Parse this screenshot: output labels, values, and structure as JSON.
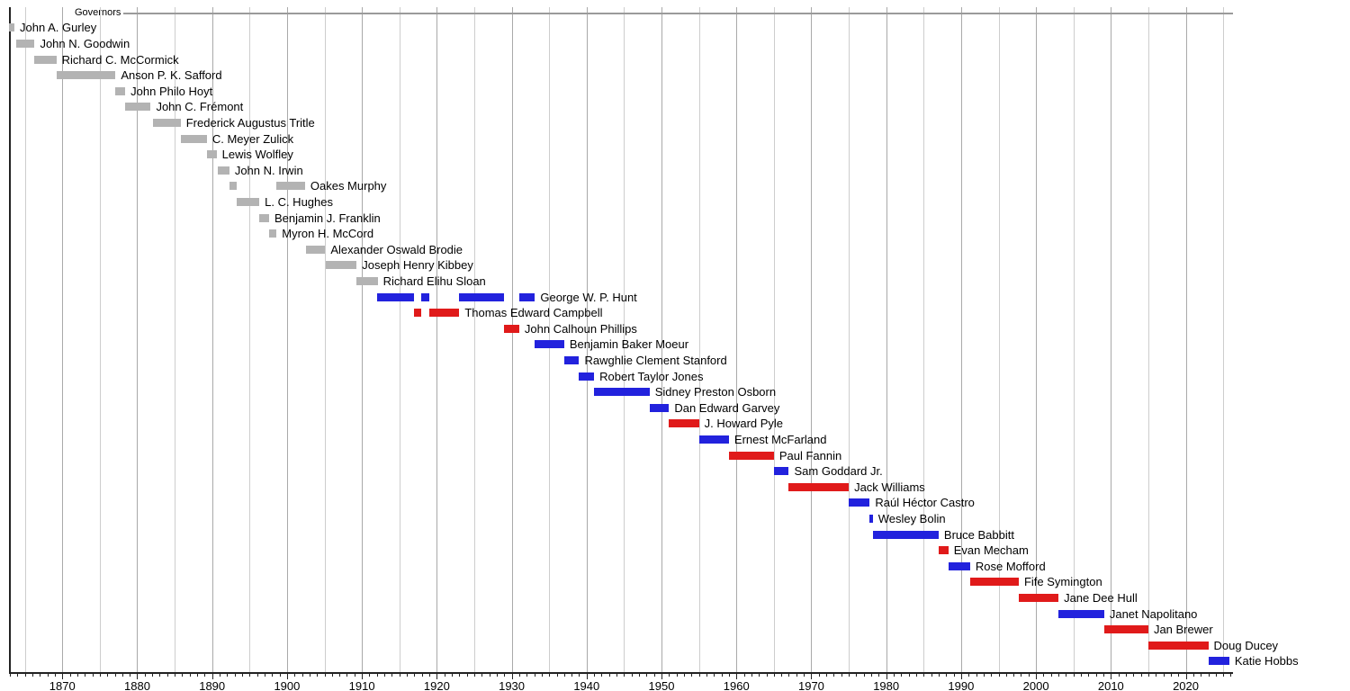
{
  "chart_data": {
    "type": "timeline",
    "title": "Governors",
    "legend_label": "Governors",
    "x_axis": {
      "min_year": 1863,
      "max_year": 2026,
      "major_tick_interval": 10,
      "minor_tick_interval": 1,
      "grid_interval": 5,
      "tick_labels": [
        "1870",
        "1880",
        "1890",
        "1900",
        "1910",
        "1920",
        "1930",
        "1940",
        "1950",
        "1960",
        "1970",
        "1980",
        "1990",
        "2000",
        "2010",
        "2020"
      ]
    },
    "colors": {
      "territorial": "#b3b3b3",
      "democratic": "#2222dd",
      "republican": "#e01a1a",
      "grid_major": "#a9a9a9",
      "grid_minor": "#cdcdcd",
      "axis": "#222222",
      "legend_line": "#9a9a9a",
      "text": "#000000"
    },
    "governors": [
      {
        "name": "John A. Gurley",
        "party": "territorial",
        "terms": [
          [
            1862.9,
            1863.6
          ]
        ]
      },
      {
        "name": "John N. Goodwin",
        "party": "territorial",
        "terms": [
          [
            1863.9,
            1866.3
          ]
        ]
      },
      {
        "name": "Richard C. McCormick",
        "party": "territorial",
        "terms": [
          [
            1866.3,
            1869.2
          ]
        ]
      },
      {
        "name": "Anson P. K. Safford",
        "party": "territorial",
        "terms": [
          [
            1869.3,
            1877.1
          ]
        ]
      },
      {
        "name": "John Philo Hoyt",
        "party": "territorial",
        "terms": [
          [
            1877.1,
            1878.4
          ]
        ]
      },
      {
        "name": "John C. Frémont",
        "party": "territorial",
        "terms": [
          [
            1878.4,
            1881.8
          ]
        ]
      },
      {
        "name": "Frederick Augustus Tritle",
        "party": "territorial",
        "terms": [
          [
            1882.1,
            1885.8
          ]
        ]
      },
      {
        "name": "C. Meyer Zulick",
        "party": "territorial",
        "terms": [
          [
            1885.8,
            1889.3
          ]
        ]
      },
      {
        "name": "Lewis Wolfley",
        "party": "territorial",
        "terms": [
          [
            1889.3,
            1890.6
          ]
        ]
      },
      {
        "name": "John N. Irwin",
        "party": "territorial",
        "terms": [
          [
            1890.8,
            1892.3
          ]
        ]
      },
      {
        "name": "Oakes Murphy",
        "party": "territorial",
        "terms": [
          [
            1892.3,
            1893.3
          ],
          [
            1898.6,
            1902.4
          ]
        ]
      },
      {
        "name": "L. C. Hughes",
        "party": "territorial",
        "terms": [
          [
            1893.3,
            1896.3
          ]
        ]
      },
      {
        "name": "Benjamin J. Franklin",
        "party": "territorial",
        "terms": [
          [
            1896.3,
            1897.6
          ]
        ]
      },
      {
        "name": "Myron H. McCord",
        "party": "territorial",
        "terms": [
          [
            1897.6,
            1898.6
          ]
        ]
      },
      {
        "name": "Alexander Oswald Brodie",
        "party": "territorial",
        "terms": [
          [
            1902.5,
            1905.1
          ]
        ]
      },
      {
        "name": "Joseph Henry Kibbey",
        "party": "territorial",
        "terms": [
          [
            1905.2,
            1909.3
          ]
        ]
      },
      {
        "name": "Richard Elihu Sloan",
        "party": "territorial",
        "terms": [
          [
            1909.3,
            1912.1
          ]
        ]
      },
      {
        "name": "George W. P. Hunt",
        "party": "democratic",
        "terms": [
          [
            1912.0,
            1917.0
          ],
          [
            1917.9,
            1919.0
          ],
          [
            1923.0,
            1929.0
          ],
          [
            1931.0,
            1933.1
          ]
        ]
      },
      {
        "name": "Thomas Edward Campbell",
        "party": "republican",
        "terms": [
          [
            1917.0,
            1917.9
          ],
          [
            1919.0,
            1923.0
          ]
        ]
      },
      {
        "name": "John Calhoun Phillips",
        "party": "republican",
        "terms": [
          [
            1929.0,
            1931.0
          ]
        ]
      },
      {
        "name": "Benjamin Baker Moeur",
        "party": "democratic",
        "terms": [
          [
            1933.0,
            1937.0
          ]
        ]
      },
      {
        "name": "Rawghlie Clement Stanford",
        "party": "democratic",
        "terms": [
          [
            1937.0,
            1939.0
          ]
        ]
      },
      {
        "name": "Robert Taylor Jones",
        "party": "democratic",
        "terms": [
          [
            1939.0,
            1941.0
          ]
        ]
      },
      {
        "name": "Sidney Preston Osborn",
        "party": "democratic",
        "terms": [
          [
            1941.0,
            1948.4
          ]
        ]
      },
      {
        "name": "Dan Edward Garvey",
        "party": "democratic",
        "terms": [
          [
            1948.4,
            1951.0
          ]
        ]
      },
      {
        "name": "J. Howard Pyle",
        "party": "republican",
        "terms": [
          [
            1951.0,
            1955.0
          ]
        ]
      },
      {
        "name": "Ernest McFarland",
        "party": "democratic",
        "terms": [
          [
            1955.0,
            1959.0
          ]
        ]
      },
      {
        "name": "Paul Fannin",
        "party": "republican",
        "terms": [
          [
            1959.0,
            1965.0
          ]
        ]
      },
      {
        "name": "Sam Goddard Jr.",
        "party": "democratic",
        "terms": [
          [
            1965.0,
            1967.0
          ]
        ]
      },
      {
        "name": "Jack Williams",
        "party": "republican",
        "terms": [
          [
            1967.0,
            1975.0
          ]
        ]
      },
      {
        "name": "Raúl Héctor Castro",
        "party": "democratic",
        "terms": [
          [
            1975.0,
            1977.8
          ]
        ]
      },
      {
        "name": "Wesley Bolin",
        "party": "democratic",
        "terms": [
          [
            1977.8,
            1978.2
          ]
        ]
      },
      {
        "name": "Bruce Babbitt",
        "party": "democratic",
        "terms": [
          [
            1978.2,
            1987.0
          ]
        ]
      },
      {
        "name": "Evan Mecham",
        "party": "republican",
        "terms": [
          [
            1987.0,
            1988.3
          ]
        ]
      },
      {
        "name": "Rose Mofford",
        "party": "democratic",
        "terms": [
          [
            1988.3,
            1991.2
          ]
        ]
      },
      {
        "name": "Fife Symington",
        "party": "republican",
        "terms": [
          [
            1991.2,
            1997.7
          ]
        ]
      },
      {
        "name": "Jane Dee Hull",
        "party": "republican",
        "terms": [
          [
            1997.7,
            2003.0
          ]
        ]
      },
      {
        "name": "Janet Napolitano",
        "party": "democratic",
        "terms": [
          [
            2003.0,
            2009.1
          ]
        ]
      },
      {
        "name": "Jan Brewer",
        "party": "republican",
        "terms": [
          [
            2009.1,
            2015.0
          ]
        ]
      },
      {
        "name": "Doug Ducey",
        "party": "republican",
        "terms": [
          [
            2015.0,
            2023.0
          ]
        ]
      },
      {
        "name": "Katie Hobbs",
        "party": "democratic",
        "terms": [
          [
            2023.0,
            2025.8
          ]
        ]
      }
    ]
  }
}
